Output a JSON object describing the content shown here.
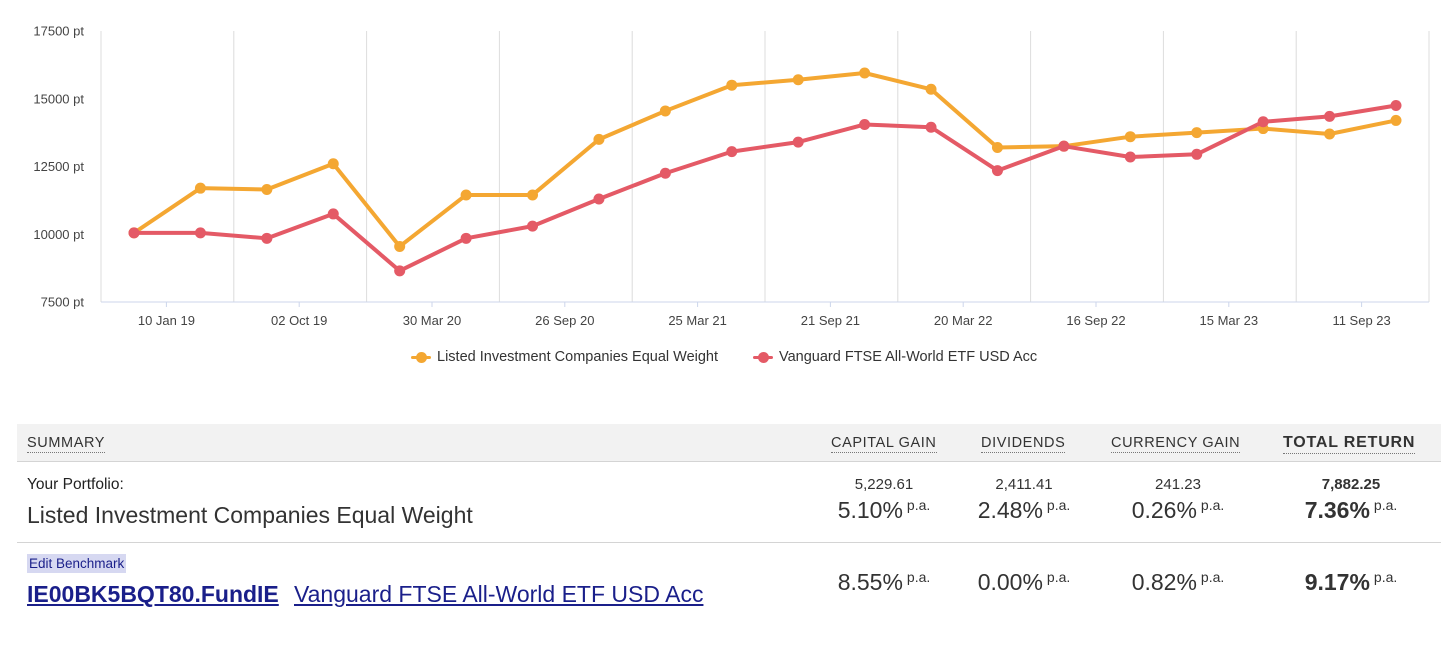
{
  "chart_data": {
    "type": "line",
    "y_ticks": [
      "17500 pt",
      "15000 pt",
      "12500 pt",
      "10000 pt",
      "7500 pt"
    ],
    "y_tick_values": [
      17500,
      15000,
      12500,
      10000,
      7500
    ],
    "ylim": [
      7500,
      17500
    ],
    "x_ticks": [
      "10 Jan 19",
      "02 Oct 19",
      "30 Mar 20",
      "26 Sep 20",
      "25 Mar 21",
      "21 Sep 21",
      "20 Mar 22",
      "16 Sep 22",
      "15 Mar 23",
      "11 Sep 23"
    ],
    "grid": "vertical",
    "legend_position": "bottom",
    "series": [
      {
        "name": "Listed Investment Companies Equal Weight",
        "color": "#F4A732",
        "values": [
          10050,
          11700,
          11650,
          12600,
          9550,
          11450,
          11450,
          13500,
          14550,
          15500,
          15700,
          15950,
          15350,
          13200,
          13250,
          13600,
          13750,
          13900,
          13700,
          14200
        ]
      },
      {
        "name": "Vanguard FTSE All-World ETF USD Acc",
        "color": "#E45A66",
        "values": [
          10050,
          10050,
          9850,
          10750,
          8650,
          9850,
          10300,
          11300,
          12250,
          13050,
          13400,
          14050,
          13950,
          12350,
          13250,
          12850,
          12950,
          14150,
          14350,
          14750
        ]
      }
    ]
  },
  "summary": {
    "header": {
      "summary": "SUMMARY",
      "capital_gain": "CAPITAL GAIN",
      "dividends": "DIVIDENDS",
      "currency_gain": "CURRENCY GAIN",
      "total_return": "TOTAL RETURN"
    },
    "portfolio": {
      "label": "Your Portfolio:",
      "name": "Listed Investment Companies Equal Weight",
      "capital_gain_abs": "5,229.61",
      "capital_gain_pct": "5.10%",
      "dividends_abs": "2,411.41",
      "dividends_pct": "2.48%",
      "currency_gain_abs": "241.23",
      "currency_gain_pct": "0.26%",
      "total_return_abs": "7,882.25",
      "total_return_pct": "7.36%",
      "pa": "p.a."
    },
    "benchmark": {
      "edit_label": "Edit Benchmark",
      "code": "IE00BK5BQT80.FundIE",
      "name": "Vanguard FTSE All-World ETF USD Acc",
      "capital_gain_pct": "8.55%",
      "dividends_pct": "0.00%",
      "currency_gain_pct": "0.82%",
      "total_return_pct": "9.17%",
      "pa": "p.a."
    }
  }
}
